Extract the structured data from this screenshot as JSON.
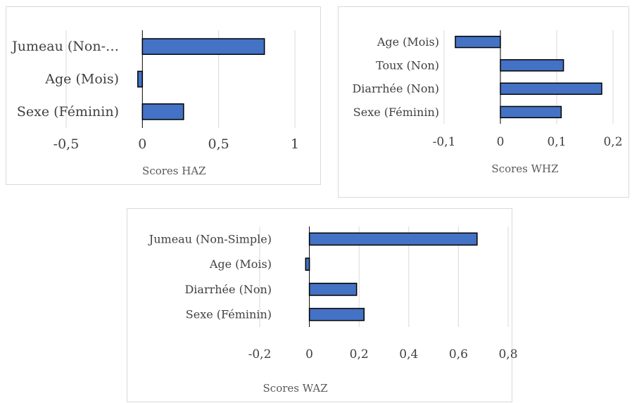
{
  "chart_data": [
    {
      "type": "bar",
      "orientation": "horizontal",
      "xlabel": "Scores HAZ",
      "xlim": [
        -0.5,
        1
      ],
      "ticks": [
        -0.5,
        0,
        0.5,
        1
      ],
      "tick_labels": [
        "-0,5",
        "0",
        "0,5",
        "1"
      ],
      "categories": [
        "Jumeau (Non-…",
        "Age (Mois)",
        "Sexe (Féminin)"
      ],
      "values": [
        0.8,
        -0.03,
        0.27
      ],
      "grid": true,
      "bar_color": "#4472c4"
    },
    {
      "type": "bar",
      "orientation": "horizontal",
      "xlabel": "Scores WHZ",
      "xlim": [
        -0.1,
        0.2
      ],
      "ticks": [
        -0.1,
        0,
        0.1,
        0.2
      ],
      "tick_labels": [
        "-0,1",
        "0",
        "0,1",
        "0,2"
      ],
      "categories": [
        "Age  (Mois)",
        "Toux (Non)",
        "Diarrhée (Non)",
        "Sexe (Féminin)"
      ],
      "values": [
        -0.08,
        0.112,
        0.18,
        0.108
      ],
      "grid": true,
      "bar_color": "#4472c4"
    },
    {
      "type": "bar",
      "orientation": "horizontal",
      "xlabel": "Scores WAZ",
      "xlim": [
        -0.2,
        0.8
      ],
      "ticks": [
        -0.2,
        0,
        0.2,
        0.4,
        0.6,
        0.8
      ],
      "tick_labels": [
        "-0,2",
        "0",
        "0,2",
        "0,4",
        "0,6",
        "0,8"
      ],
      "categories": [
        "Jumeau (Non-Simple)",
        "Age  (Mois)",
        "Diarrhée (Non)",
        "Sexe (Féminin)"
      ],
      "values": [
        0.675,
        -0.015,
        0.19,
        0.22
      ],
      "grid": true,
      "bar_color": "#4472c4"
    }
  ]
}
